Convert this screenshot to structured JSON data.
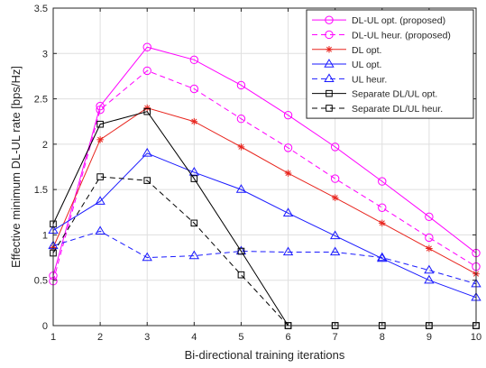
{
  "chart_data": {
    "type": "line",
    "title": "",
    "xlabel": "Bi-directional training iterations",
    "ylabel": "Effective minimum DL-UL rate [bps/Hz]",
    "x": [
      1,
      2,
      3,
      4,
      5,
      6,
      7,
      8,
      9,
      10
    ],
    "xlim": [
      1,
      10
    ],
    "ylim": [
      0,
      3.5
    ],
    "xticks": [
      "1",
      "2",
      "3",
      "4",
      "5",
      "6",
      "7",
      "8",
      "9",
      "10"
    ],
    "yticks": [
      "0",
      "0.5",
      "1",
      "1.5",
      "2",
      "2.5",
      "3",
      "3.5"
    ],
    "grid": true,
    "legend_position": "top-right",
    "series": [
      {
        "name": "DL-UL opt. (proposed)",
        "color": "#ff00ff",
        "dash": "solid",
        "marker": "circle",
        "values": [
          0.55,
          2.42,
          3.07,
          2.93,
          2.65,
          2.32,
          1.97,
          1.59,
          1.2,
          0.8
        ]
      },
      {
        "name": "DL-UL heur. (proposed)",
        "color": "#ff00ff",
        "dash": "dashed",
        "marker": "circle",
        "values": [
          0.49,
          2.38,
          2.81,
          2.61,
          2.28,
          1.96,
          1.62,
          1.3,
          0.97,
          0.65
        ]
      },
      {
        "name": "DL opt.",
        "color": "#e8251e",
        "dash": "solid",
        "marker": "star",
        "values": [
          0.86,
          2.05,
          2.4,
          2.25,
          1.97,
          1.68,
          1.41,
          1.13,
          0.85,
          0.57
        ]
      },
      {
        "name": "UL opt.",
        "color": "#1a1aff",
        "dash": "solid",
        "marker": "triangle",
        "values": [
          1.05,
          1.37,
          1.9,
          1.69,
          1.5,
          1.24,
          0.99,
          0.74,
          0.5,
          0.31
        ]
      },
      {
        "name": "UL heur.",
        "color": "#1a1aff",
        "dash": "dashed",
        "marker": "triangle",
        "values": [
          0.88,
          1.04,
          0.75,
          0.77,
          0.82,
          0.81,
          0.81,
          0.75,
          0.61,
          0.46
        ]
      },
      {
        "name": "Separate DL/UL opt.",
        "color": "#000000",
        "dash": "solid",
        "marker": "square",
        "values": [
          1.12,
          2.22,
          2.36,
          1.62,
          0.82,
          0.0,
          0.0,
          0.0,
          0.0,
          0.0
        ]
      },
      {
        "name": "Separate DL/UL heur.",
        "color": "#000000",
        "dash": "dashed",
        "marker": "square",
        "values": [
          0.8,
          1.64,
          1.6,
          1.13,
          0.56,
          0.0,
          0.0,
          0.0,
          0.0,
          0.0
        ]
      }
    ]
  }
}
